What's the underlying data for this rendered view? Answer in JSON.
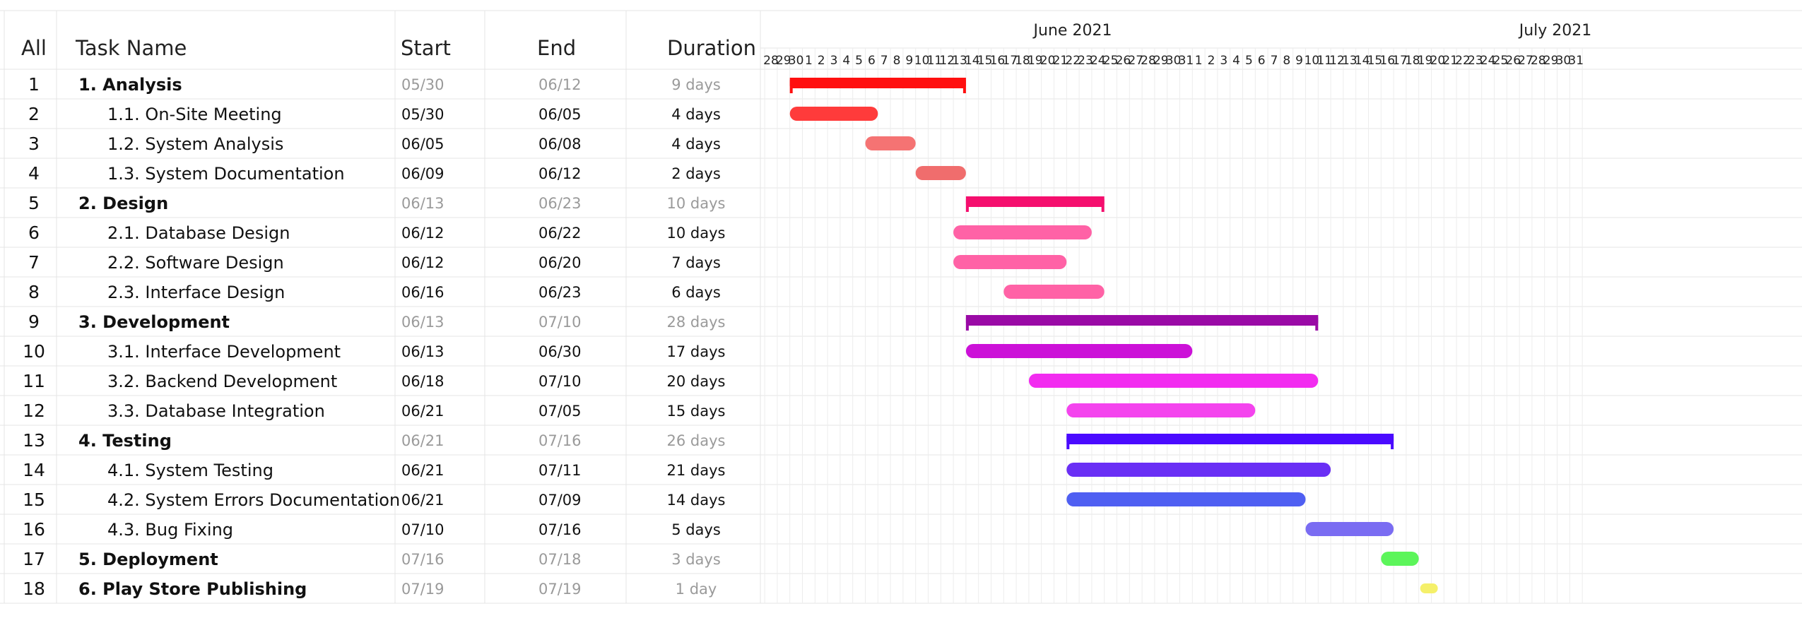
{
  "headers": {
    "all": "All",
    "task_name": "Task Name",
    "start": "Start",
    "end": "End",
    "duration": "Duration"
  },
  "months": [
    "June 2021",
    "July 2021"
  ],
  "day_ticks": [
    "28",
    "29",
    "30",
    "1",
    "2",
    "3",
    "4",
    "5",
    "6",
    "7",
    "8",
    "9",
    "10",
    "11",
    "12",
    "13",
    "14",
    "15",
    "16",
    "17",
    "18",
    "19",
    "20",
    "21",
    "22",
    "23",
    "24",
    "25",
    "26",
    "27",
    "28",
    "29",
    "30",
    "31",
    "1",
    "2",
    "3",
    "4",
    "5",
    "6",
    "7",
    "8",
    "9",
    "10",
    "11",
    "12",
    "13",
    "14",
    "15",
    "16",
    "17",
    "18",
    "19",
    "20",
    "21",
    "22",
    "23",
    "24",
    "25",
    "26",
    "27",
    "28",
    "29",
    "30",
    "31"
  ],
  "chart_data": {
    "type": "gantt",
    "year": 2021,
    "x_range": [
      "05/28",
      "07/31"
    ],
    "grid": true,
    "tasks": [
      {
        "id": "1",
        "name": "1.  Analysis",
        "start": "05/30",
        "end": "06/12",
        "duration": "9 days",
        "summary": true,
        "color": "#ff1010"
      },
      {
        "id": "2",
        "name": "1.1. On-Site Meeting",
        "start": "05/30",
        "end": "06/05",
        "duration": "4 days",
        "summary": false,
        "color": "#ff3b3b"
      },
      {
        "id": "3",
        "name": "1.2. System Analysis",
        "start": "06/05",
        "end": "06/08",
        "duration": "4 days",
        "summary": false,
        "color": "#f57373"
      },
      {
        "id": "4",
        "name": "1.3. System Documentation",
        "start": "06/09",
        "end": "06/12",
        "duration": "2 days",
        "summary": false,
        "color": "#f06d6d"
      },
      {
        "id": "5",
        "name": "2.  Design",
        "start": "06/13",
        "end": "06/23",
        "duration": "10 days",
        "summary": true,
        "color": "#f50f6e"
      },
      {
        "id": "6",
        "name": "2.1. Database Design",
        "start": "06/12",
        "end": "06/22",
        "duration": "10 days",
        "summary": false,
        "color": "#ff62a6"
      },
      {
        "id": "7",
        "name": "2.2. Software Design",
        "start": "06/12",
        "end": "06/20",
        "duration": "7 days",
        "summary": false,
        "color": "#ff62a6"
      },
      {
        "id": "8",
        "name": "2.3. Interface Design",
        "start": "06/16",
        "end": "06/23",
        "duration": "6 days",
        "summary": false,
        "color": "#ff62a6"
      },
      {
        "id": "9",
        "name": "3.  Development",
        "start": "06/13",
        "end": "07/10",
        "duration": "28 days",
        "summary": true,
        "color": "#9a0aa6"
      },
      {
        "id": "10",
        "name": "3.1. Interface Development",
        "start": "06/13",
        "end": "06/30",
        "duration": "17 days",
        "summary": false,
        "color": "#cc11d8"
      },
      {
        "id": "11",
        "name": "3.2. Backend Development",
        "start": "06/18",
        "end": "07/10",
        "duration": "20 days",
        "summary": false,
        "color": "#f22cf0"
      },
      {
        "id": "12",
        "name": "3.3. Database Integration",
        "start": "06/21",
        "end": "07/05",
        "duration": "15 days",
        "summary": false,
        "color": "#f444ee"
      },
      {
        "id": "13",
        "name": "4.  Testing",
        "start": "06/21",
        "end": "07/16",
        "duration": "26 days",
        "summary": true,
        "color": "#4a0aff"
      },
      {
        "id": "14",
        "name": "4.1. System Testing",
        "start": "06/21",
        "end": "07/11",
        "duration": "21 days",
        "summary": false,
        "color": "#6a2ff5"
      },
      {
        "id": "15",
        "name": "4.2. System Errors Documentation",
        "start": "06/21",
        "end": "07/09",
        "duration": "14 days",
        "summary": false,
        "color": "#4f5ff2"
      },
      {
        "id": "16",
        "name": "4.3. Bug Fixing",
        "start": "07/10",
        "end": "07/16",
        "duration": "5 days",
        "summary": false,
        "color": "#7a6cf2"
      },
      {
        "id": "17",
        "name": "5.  Deployment",
        "start": "07/16",
        "end": "07/18",
        "duration": "3 days",
        "summary": true,
        "color": "#5cf55a"
      },
      {
        "id": "18",
        "name": "6.  Play Store Publishing",
        "start": "07/19",
        "end": "07/19",
        "duration": "1 day",
        "summary": true,
        "color": "#f5f06a"
      }
    ]
  }
}
